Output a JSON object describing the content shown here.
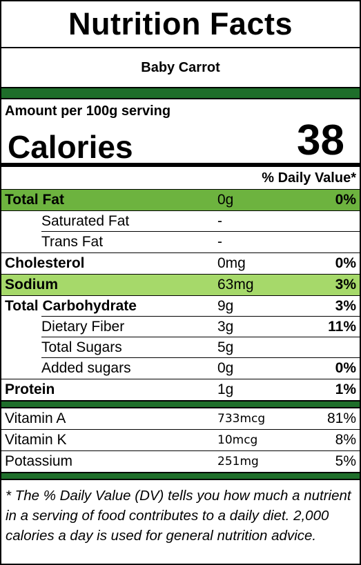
{
  "header": {
    "title": "Nutrition Facts",
    "food_name": "Baby Carrot"
  },
  "serving": {
    "amount_label": "Amount per 100g serving",
    "calories_label": "Calories",
    "calories_value": "38"
  },
  "daily_value_header": "% Daily Value*",
  "nutrients": [
    {
      "name": "Total Fat",
      "amount": "0g",
      "dv": "0%"
    },
    {
      "name": "Saturated Fat",
      "amount": "-",
      "dv": ""
    },
    {
      "name": "Trans Fat",
      "amount": "-",
      "dv": ""
    },
    {
      "name": "Cholesterol",
      "amount": "0mg",
      "dv": "0%"
    },
    {
      "name": "Sodium",
      "amount": "63mg",
      "dv": "3%"
    },
    {
      "name": "Total Carbohydrate",
      "amount": "9g",
      "dv": "3%"
    },
    {
      "name": "Dietary Fiber",
      "amount": "3g",
      "dv": "11%"
    },
    {
      "name": "Total Sugars",
      "amount": "5g",
      "dv": ""
    },
    {
      "name": "Added sugars",
      "amount": "0g",
      "dv": "0%"
    },
    {
      "name": "Protein",
      "amount": "1g",
      "dv": "1%"
    }
  ],
  "vitamins": [
    {
      "name": "Vitamin A",
      "amount": "733mcg",
      "dv": "81%"
    },
    {
      "name": "Vitamin K",
      "amount": "10mcg",
      "dv": "8%"
    },
    {
      "name": "Potassium",
      "amount": "251mg",
      "dv": "5%"
    }
  ],
  "footnote": "* The % Daily Value (DV) tells you how much a nutrient in a serving of food contributes to a daily diet. 2,000 calories a day is used for general nutrition advice.",
  "colors": {
    "highlight_dark": "#6db33f",
    "highlight_light": "#a6d96a",
    "bar_green": "#1e6e2a"
  }
}
